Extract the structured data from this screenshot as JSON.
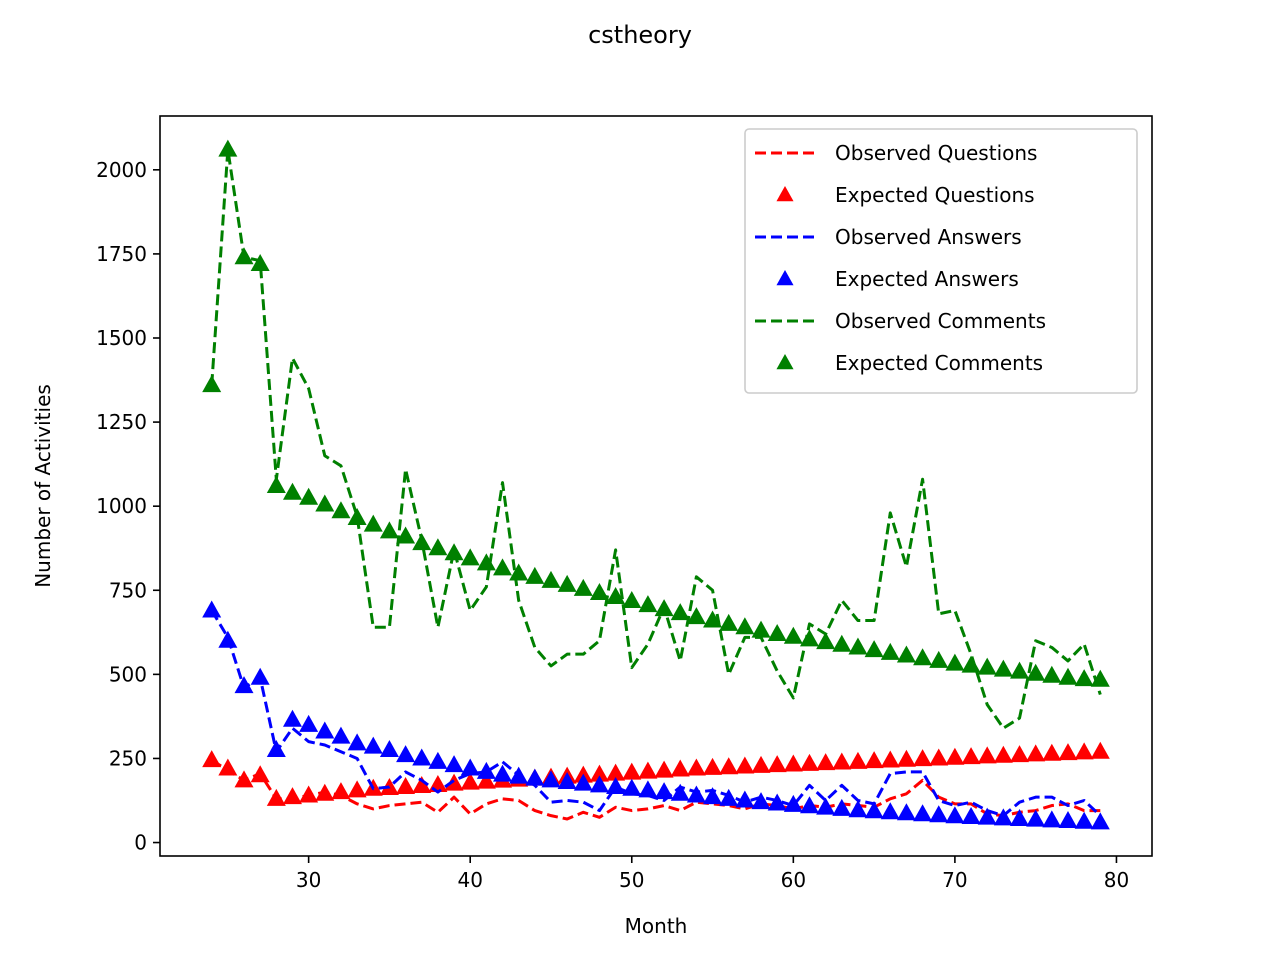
{
  "chart_data": {
    "type": "line",
    "title": "cstheory",
    "xlabel": "Month",
    "ylabel": "Number of Activities",
    "xlim": [
      20.8,
      82.2
    ],
    "ylim": [
      -40,
      2160
    ],
    "xticks": [
      30,
      40,
      50,
      60,
      70,
      80
    ],
    "yticks": [
      0,
      250,
      500,
      750,
      1000,
      1250,
      1500,
      1750,
      2000
    ],
    "grid": false,
    "legend_position": "upper right",
    "x": [
      24,
      25,
      26,
      27,
      28,
      29,
      30,
      31,
      32,
      33,
      34,
      35,
      36,
      37,
      38,
      39,
      40,
      41,
      42,
      43,
      44,
      45,
      46,
      47,
      48,
      49,
      50,
      51,
      52,
      53,
      54,
      55,
      56,
      57,
      58,
      59,
      60,
      61,
      62,
      63,
      64,
      65,
      66,
      67,
      68,
      69,
      70,
      71,
      72,
      73,
      74,
      75,
      76,
      77,
      78,
      79
    ],
    "series": [
      {
        "name": "Observed Questions",
        "style": "dashed",
        "color": "#ff0000",
        "values": [
          245,
          215,
          185,
          205,
          130,
          130,
          140,
          150,
          140,
          115,
          100,
          110,
          115,
          120,
          90,
          135,
          85,
          115,
          130,
          125,
          95,
          80,
          70,
          90,
          75,
          105,
          95,
          100,
          110,
          95,
          120,
          115,
          110,
          100,
          115,
          110,
          100,
          110,
          105,
          115,
          110,
          105,
          130,
          145,
          185,
          135,
          115,
          115,
          85,
          80,
          90,
          95,
          110,
          115,
          95,
          95
        ]
      },
      {
        "name": "Expected Questions",
        "style": "triangle",
        "color": "#ff0000",
        "values": [
          245,
          220,
          185,
          200,
          130,
          135,
          140,
          145,
          150,
          155,
          160,
          162,
          165,
          168,
          171,
          175,
          178,
          181,
          184,
          187,
          190,
          193,
          196,
          199,
          202,
          205,
          208,
          211,
          214,
          217,
          220,
          222,
          224,
          226,
          228,
          230,
          232,
          234,
          236,
          238,
          240,
          242,
          244,
          246,
          248,
          250,
          252,
          254,
          256,
          258,
          260,
          262,
          264,
          266,
          268,
          270
        ]
      },
      {
        "name": "Observed Answers",
        "style": "dashed",
        "color": "#0000ff",
        "values": [
          690,
          610,
          460,
          490,
          270,
          340,
          300,
          290,
          270,
          250,
          160,
          165,
          210,
          185,
          150,
          185,
          205,
          210,
          240,
          200,
          170,
          120,
          125,
          120,
          95,
          165,
          145,
          140,
          125,
          165,
          150,
          155,
          140,
          120,
          135,
          125,
          110,
          170,
          125,
          170,
          125,
          115,
          205,
          210,
          210,
          125,
          110,
          120,
          95,
          80,
          120,
          135,
          135,
          110,
          125,
          80
        ]
      },
      {
        "name": "Expected Answers",
        "style": "triangle",
        "color": "#0000ff",
        "values": [
          690,
          600,
          465,
          490,
          275,
          365,
          350,
          330,
          315,
          295,
          285,
          275,
          260,
          250,
          240,
          230,
          220,
          210,
          202,
          196,
          190,
          185,
          180,
          175,
          170,
          165,
          160,
          155,
          150,
          145,
          140,
          135,
          130,
          125,
          120,
          116,
          112,
          108,
          104,
          100,
          96,
          93,
          90,
          87,
          84,
          81,
          78,
          76,
          74,
          72,
          70,
          68,
          66,
          64,
          62,
          60
        ]
      },
      {
        "name": "Observed Comments",
        "style": "dashed",
        "color": "#008000",
        "values": [
          1360,
          2060,
          1740,
          1730,
          1080,
          1440,
          1350,
          1150,
          1120,
          970,
          640,
          640,
          1110,
          900,
          640,
          870,
          690,
          760,
          1070,
          720,
          580,
          525,
          560,
          560,
          600,
          870,
          520,
          590,
          700,
          540,
          790,
          750,
          500,
          610,
          610,
          510,
          430,
          650,
          620,
          720,
          660,
          660,
          980,
          820,
          1080,
          680,
          690,
          560,
          410,
          340,
          370,
          600,
          580,
          540,
          590,
          440
        ]
      },
      {
        "name": "Expected Comments",
        "style": "triangle",
        "color": "#008000",
        "values": [
          1360,
          2060,
          1740,
          1720,
          1060,
          1040,
          1025,
          1005,
          985,
          965,
          945,
          925,
          910,
          890,
          875,
          860,
          845,
          830,
          815,
          800,
          790,
          778,
          766,
          754,
          742,
          730,
          718,
          706,
          694,
          682,
          670,
          660,
          650,
          640,
          630,
          620,
          612,
          604,
          596,
          588,
          580,
          572,
          564,
          556,
          548,
          540,
          532,
          526,
          520,
          514,
          508,
          502,
          496,
          490,
          486,
          484
        ]
      }
    ]
  }
}
